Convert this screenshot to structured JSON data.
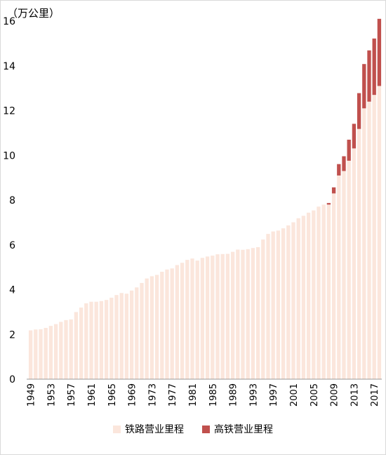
{
  "chart_data": {
    "type": "bar",
    "stacked": true,
    "unit_label": "（万公里）",
    "ylim": [
      0,
      16
    ],
    "yticks": [
      "0",
      "2",
      "4",
      "6",
      "8",
      "10",
      "12",
      "14",
      "16"
    ],
    "xtick_labels": [
      "1949",
      "1953",
      "1957",
      "1961",
      "1965",
      "1969",
      "1973",
      "1977",
      "1981",
      "1985",
      "1989",
      "1993",
      "1997",
      "2001",
      "2005",
      "2009",
      "2013",
      "2017"
    ],
    "categories": [
      1949,
      1950,
      1951,
      1952,
      1953,
      1954,
      1955,
      1956,
      1957,
      1958,
      1959,
      1960,
      1961,
      1962,
      1963,
      1964,
      1965,
      1966,
      1967,
      1968,
      1969,
      1970,
      1971,
      1972,
      1973,
      1974,
      1975,
      1976,
      1977,
      1978,
      1979,
      1980,
      1981,
      1982,
      1983,
      1984,
      1985,
      1986,
      1987,
      1988,
      1989,
      1990,
      1991,
      1992,
      1993,
      1994,
      1995,
      1996,
      1997,
      1998,
      1999,
      2000,
      2001,
      2002,
      2003,
      2004,
      2005,
      2006,
      2007,
      2008,
      2009,
      2010,
      2011,
      2012,
      2013,
      2014,
      2015,
      2016,
      2017,
      2018
    ],
    "series": [
      {
        "name": "铁路营业里程",
        "color": "#fbe6dc",
        "values": [
          2.18,
          2.22,
          2.23,
          2.29,
          2.38,
          2.46,
          2.56,
          2.64,
          2.67,
          3.0,
          3.2,
          3.39,
          3.46,
          3.46,
          3.49,
          3.54,
          3.64,
          3.76,
          3.85,
          3.82,
          3.96,
          4.1,
          4.3,
          4.5,
          4.6,
          4.66,
          4.8,
          4.9,
          4.95,
          5.1,
          5.2,
          5.33,
          5.39,
          5.3,
          5.42,
          5.48,
          5.52,
          5.58,
          5.59,
          5.6,
          5.69,
          5.79,
          5.78,
          5.81,
          5.86,
          5.9,
          6.24,
          6.49,
          6.6,
          6.64,
          6.74,
          6.87,
          7.01,
          7.19,
          7.3,
          7.44,
          7.54,
          7.71,
          7.8,
          7.8,
          8.3,
          9.1,
          9.3,
          9.76,
          10.31,
          11.18,
          12.1,
          12.4,
          12.7,
          13.1
        ]
      },
      {
        "name": "高铁营业里程",
        "color": "#c0504d",
        "values": [
          0,
          0,
          0,
          0,
          0,
          0,
          0,
          0,
          0,
          0,
          0,
          0,
          0,
          0,
          0,
          0,
          0,
          0,
          0,
          0,
          0,
          0,
          0,
          0,
          0,
          0,
          0,
          0,
          0,
          0,
          0,
          0,
          0,
          0,
          0,
          0,
          0,
          0,
          0,
          0,
          0,
          0,
          0,
          0,
          0,
          0,
          0,
          0,
          0,
          0,
          0,
          0,
          0,
          0,
          0,
          0,
          0,
          0,
          0,
          0.07,
          0.27,
          0.51,
          0.66,
          0.94,
          1.1,
          1.6,
          1.98,
          2.29,
          2.52,
          3.0
        ]
      }
    ],
    "legend_position": "bottom",
    "grid": false
  }
}
